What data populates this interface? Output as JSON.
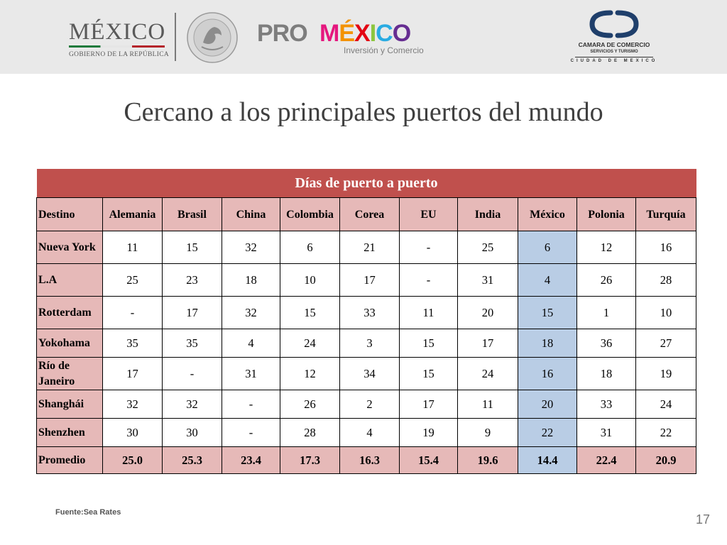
{
  "header": {
    "mexico_logo": {
      "word": "MÉXICO",
      "subtitle": "GOBIERNO DE LA REPÚBLICA"
    },
    "promexico_logo": {
      "pro": "PRO",
      "mexico_letters": [
        "M",
        "É",
        "X",
        "I",
        "C",
        "O"
      ],
      "mexico_colors": [
        "#e5177e",
        "#f39200",
        "#e30613",
        "#8cc63f",
        "#29abe2",
        "#662d91"
      ],
      "subtitle": "Inversión y Comercio"
    },
    "camara_logo": {
      "line1": "CAMARA DE COMERCIO",
      "line2": "SERVICIOS Y TURISMO",
      "line3": "CIUDAD DE MEXICO",
      "mark_color": "#1f3f6b"
    }
  },
  "slide": {
    "title": "Cercano a los principales puertos del mundo",
    "source": "Fuente:Sea Rates",
    "page_number": "17"
  },
  "table": {
    "caption": "Días de puerto a puerto",
    "header_first": "Destino",
    "columns": [
      "Alemania",
      "Brasil",
      "China",
      "Colombia",
      "Corea",
      "EU",
      "India",
      "México",
      "Polonia",
      "Turquía"
    ],
    "rows": [
      {
        "label": "Nueva York",
        "values": [
          "11",
          "15",
          "32",
          "6",
          "21",
          "-",
          "25",
          "6",
          "12",
          "16"
        ]
      },
      {
        "label": "L.A",
        "values": [
          "25",
          "23",
          "18",
          "10",
          "17",
          "-",
          "31",
          "4",
          "26",
          "28"
        ]
      },
      {
        "label": "Rotterdam",
        "values": [
          "-",
          "17",
          "32",
          "15",
          "33",
          "11",
          "20",
          "15",
          "1",
          "10"
        ]
      },
      {
        "label": "Yokohama",
        "values": [
          "35",
          "35",
          "4",
          "24",
          "3",
          "15",
          "17",
          "18",
          "36",
          "27"
        ]
      },
      {
        "label": "Río de Janeiro",
        "values": [
          "17",
          "-",
          "31",
          "12",
          "34",
          "15",
          "24",
          "16",
          "18",
          "19"
        ]
      },
      {
        "label": "Shanghái",
        "values": [
          "32",
          "32",
          "-",
          "26",
          "2",
          "17",
          "11",
          "20",
          "33",
          "24"
        ]
      },
      {
        "label": "Shenzhen",
        "values": [
          "30",
          "30",
          "-",
          "28",
          "4",
          "19",
          "9",
          "22",
          "31",
          "22"
        ]
      }
    ],
    "average": {
      "label": "Promedio",
      "values": [
        "25.0",
        "25.3",
        "23.4",
        "17.3",
        "16.3",
        "15.4",
        "19.6",
        "14.4",
        "22.4",
        "20.9"
      ]
    },
    "colors": {
      "caption_bg": "#c0504d",
      "label_bg": "#e6b9b8",
      "highlight_bg": "#b9cde5"
    }
  }
}
